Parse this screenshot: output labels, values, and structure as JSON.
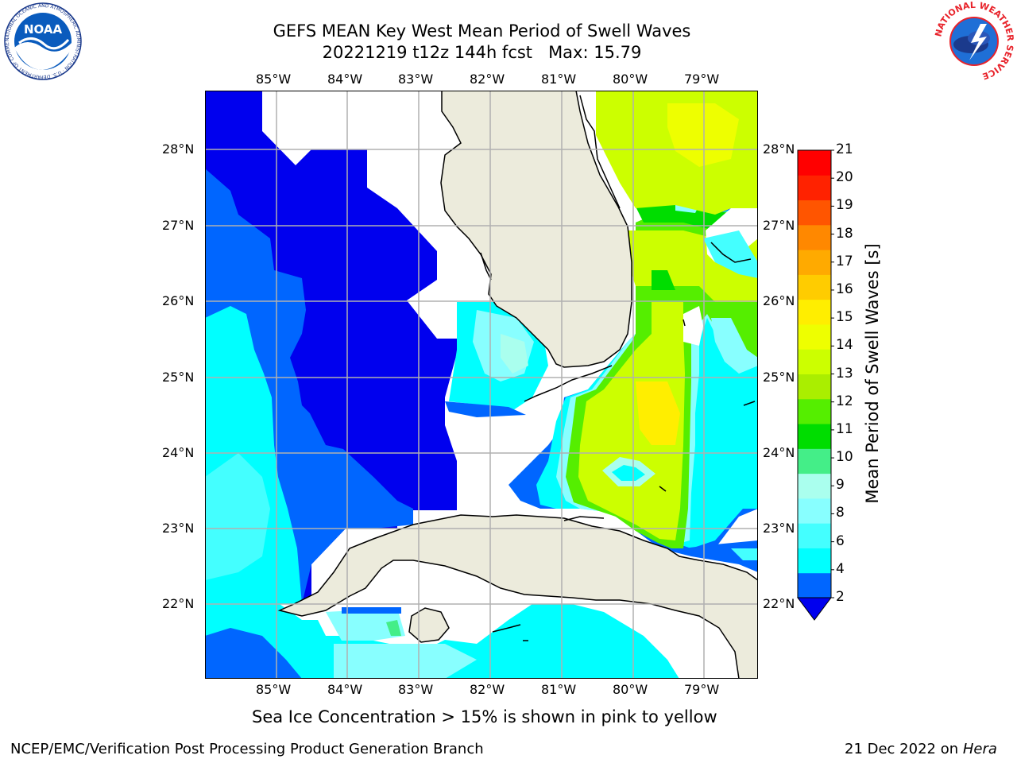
{
  "header": {
    "title_line1": "GEFS MEAN Key West Mean Period of Swell Waves",
    "title_line2": "20221219 t12z 144h fcst   Max: 15.79"
  },
  "logos": {
    "left": "NOAA",
    "left_ring_text": "NATIONAL OCEANIC AND ATMOSPHERIC ADMINISTRATION · U.S. DEPARTMENT OF COMMERCE",
    "right_ring_text": "NATIONAL WEATHER SERVICE"
  },
  "map": {
    "lon_labels": [
      "85°W",
      "84°W",
      "83°W",
      "82°W",
      "81°W",
      "80°W",
      "79°W"
    ],
    "lat_labels": [
      "28°N",
      "27°N",
      "26°N",
      "25°N",
      "24°N",
      "23°N",
      "22°N"
    ],
    "colors": {
      "land": "#ecebdc",
      "grid": "#b0b0b0",
      "coast": "#000000"
    }
  },
  "colorbar": {
    "title": "Mean Period of Swell Waves [s]",
    "ticks": [
      "21",
      "20",
      "19",
      "18",
      "17",
      "16",
      "15",
      "14",
      "13",
      "12",
      "11",
      "10",
      "9",
      "8",
      "6",
      "4",
      "2"
    ],
    "colors": [
      "#0066ff",
      "#00ffff",
      "#44ffff",
      "#88ffff",
      "#aaffee",
      "#44ee88",
      "#00dd00",
      "#55ee00",
      "#aaee00",
      "#ccff00",
      "#eeff00",
      "#ffee00",
      "#ffcc00",
      "#ffaa00",
      "#ff8800",
      "#ff5500",
      "#ff2200",
      "#ff0000"
    ],
    "under_color": "#0000ee"
  },
  "footer": {
    "subtitle": "Sea Ice Concentration > 15% is shown in pink to yellow",
    "left": "NCEP/EMC/Verification Post Processing Product Generation Branch",
    "right_prefix": "21 Dec 2022 on ",
    "right_host": "Hera"
  }
}
